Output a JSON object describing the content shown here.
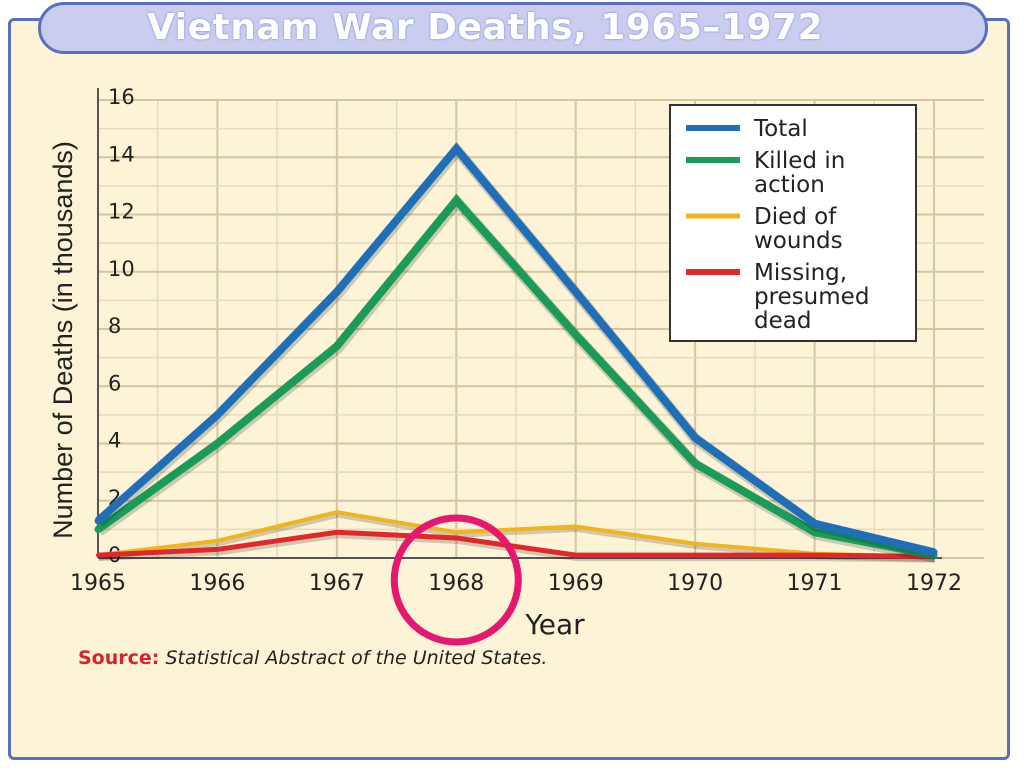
{
  "chart_data": {
    "type": "line",
    "title": "Vietnam War Deaths, 1965–1972",
    "xlabel": "Year",
    "ylabel": "Number of Deaths (in thousands)",
    "x": [
      1965,
      1966,
      1967,
      1968,
      1969,
      1970,
      1971,
      1972
    ],
    "xlim": [
      1965,
      1972
    ],
    "ylim": [
      0,
      16
    ],
    "y_ticks": [
      "0",
      "2",
      "4",
      "6",
      "8",
      "10",
      "12",
      "14",
      "16"
    ],
    "x_ticks": [
      "1965",
      "1966",
      "1967",
      "1968",
      "1969",
      "1970",
      "1971",
      "1972"
    ],
    "grid": true,
    "legend_position": "top-right",
    "series": [
      {
        "name": "Total",
        "color": "#1f6fb8",
        "values": [
          1.3,
          5.0,
          9.3,
          14.3,
          9.3,
          4.2,
          1.2,
          0.2
        ]
      },
      {
        "name": "Killed in action",
        "color": "#1a9b5a",
        "values": [
          1.0,
          4.0,
          7.4,
          12.5,
          7.8,
          3.3,
          0.9,
          0.1
        ]
      },
      {
        "name": "Died of wounds",
        "color": "#f0b41c",
        "values": [
          0.1,
          0.6,
          1.6,
          0.9,
          1.1,
          0.5,
          0.15,
          0.05
        ]
      },
      {
        "name": "Missing, presumed dead",
        "color": "#e0282c",
        "values": [
          0.1,
          0.3,
          0.9,
          0.7,
          0.1,
          0.1,
          0.1,
          0.05
        ]
      }
    ],
    "annotations": [
      {
        "type": "circle",
        "target_x": 1968,
        "color": "#e6176f"
      }
    ]
  },
  "source": {
    "label": "Source:",
    "text": "Statistical Abstract of the United States."
  }
}
